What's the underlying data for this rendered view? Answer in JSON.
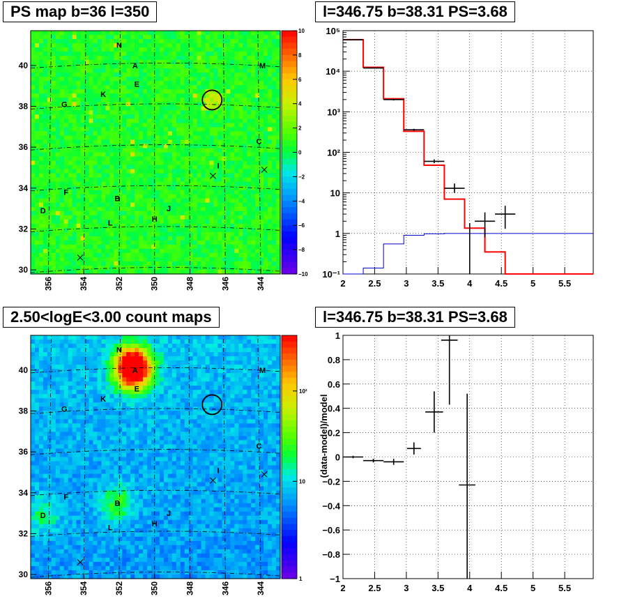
{
  "titles": {
    "ps_map": "PS map b=36 l=350",
    "spectrum": "l=346.75 b=38.31 PS=3.68",
    "count_map": "2.50<logE<3.00 count maps",
    "residual": "l=346.75 b=38.31 PS=3.68"
  },
  "chart_data": [
    {
      "type": "heatmap",
      "title": "PS map b=36 l=350",
      "x_ticks": [
        "356",
        "354",
        "352",
        "350",
        "348",
        "346",
        "344"
      ],
      "y_ticks": [
        "30",
        "32",
        "34",
        "36",
        "38",
        "40"
      ],
      "xlim": [
        357.0,
        342.9
      ],
      "ylim": [
        29.8,
        41.7
      ],
      "colorbar": {
        "scale": "linear",
        "range": [
          -10,
          10
        ],
        "ticks": [
          "10",
          "8",
          "6",
          "4",
          "2",
          "0",
          "−2",
          "−4",
          "−6",
          "−8",
          "−10"
        ]
      },
      "source_labels": [
        {
          "label": "N",
          "l": 352.0,
          "b": 41.0
        },
        {
          "label": "A",
          "l": 351.1,
          "b": 40.0
        },
        {
          "label": "M",
          "l": 343.9,
          "b": 40.0
        },
        {
          "label": "E",
          "l": 351.0,
          "b": 39.1
        },
        {
          "label": "K",
          "l": 352.9,
          "b": 38.6
        },
        {
          "label": "G",
          "l": 355.1,
          "b": 38.1
        },
        {
          "label": "C",
          "l": 344.1,
          "b": 36.3
        },
        {
          "label": "I",
          "l": 346.4,
          "b": 35.1
        },
        {
          "label": "F",
          "l": 355.0,
          "b": 33.8
        },
        {
          "label": "B",
          "l": 352.1,
          "b": 33.5
        },
        {
          "label": "D",
          "l": 356.3,
          "b": 32.9
        },
        {
          "label": "J",
          "l": 349.2,
          "b": 33.0
        },
        {
          "label": "H",
          "l": 350.0,
          "b": 32.5
        },
        {
          "label": "L",
          "l": 352.5,
          "b": 32.3
        }
      ],
      "circle_marker": {
        "l": 346.75,
        "b": 38.31
      },
      "cross_markers": [
        {
          "l": 346.7,
          "b": 34.6
        },
        {
          "l": 343.8,
          "b": 34.9
        },
        {
          "l": 354.2,
          "b": 30.6
        }
      ]
    },
    {
      "type": "line",
      "title": "l=346.75 b=38.31 PS=3.68",
      "y_scale": "log",
      "xlim": [
        2.0,
        5.95
      ],
      "ylim": [
        0.1,
        100000
      ],
      "x_ticks": [
        "2",
        "2.5",
        "3",
        "3.5",
        "4",
        "4.5",
        "5",
        "5.5"
      ],
      "y_ticks": [
        "10⁻¹",
        "1",
        "10",
        "10²",
        "10³",
        "10⁴",
        "10⁵"
      ],
      "grid": true,
      "series": [
        {
          "color": "#ff0000",
          "kind": "step",
          "edges": [
            2.0,
            2.32,
            2.64,
            2.96,
            3.28,
            3.6,
            3.92,
            4.24,
            4.56,
            4.88,
            5.2,
            5.52,
            5.95
          ],
          "values": [
            60000,
            12500,
            2100,
            330,
            48,
            7.0,
            1.35,
            0.35,
            0.1,
            0.1,
            0.1,
            0.1
          ]
        },
        {
          "color": "#0000cc",
          "kind": "step",
          "edges": [
            2.0,
            2.32,
            2.64,
            2.96,
            3.28,
            3.6,
            3.92,
            4.24,
            4.56,
            4.88,
            5.2,
            5.52,
            5.95
          ],
          "values": [
            0.1,
            0.14,
            0.55,
            0.9,
            0.98,
            1.0,
            1.0,
            1.0,
            1.0,
            1.0,
            1.0,
            1.0
          ]
        },
        {
          "color": "#000000",
          "kind": "errorbar",
          "points": [
            {
              "x": 2.16,
              "xerr": 0.16,
              "y": 60000,
              "ylo": 59500,
              "yhi": 60500
            },
            {
              "x": 2.48,
              "xerr": 0.16,
              "y": 12000,
              "ylo": 11800,
              "yhi": 12200
            },
            {
              "x": 2.8,
              "xerr": 0.16,
              "y": 2000,
              "ylo": 1900,
              "yhi": 2100
            },
            {
              "x": 3.12,
              "xerr": 0.16,
              "y": 360,
              "ylo": 340,
              "yhi": 380
            },
            {
              "x": 3.44,
              "xerr": 0.16,
              "y": 60,
              "ylo": 54,
              "yhi": 67
            },
            {
              "x": 3.76,
              "xerr": 0.16,
              "y": 13,
              "ylo": 10,
              "yhi": 17
            },
            {
              "x": 4.0,
              "xerr": 0.0,
              "y": 1.0,
              "ylo": 0.1,
              "yhi": 1.8
            },
            {
              "x": 4.24,
              "xerr": 0.16,
              "y": 2.0,
              "ylo": 0.8,
              "yhi": 3.3
            },
            {
              "x": 4.56,
              "xerr": 0.16,
              "y": 3.0,
              "ylo": 1.3,
              "yhi": 4.8
            }
          ]
        }
      ]
    },
    {
      "type": "heatmap",
      "title": "2.50<logE<3.00 count maps",
      "x_ticks": [
        "356",
        "354",
        "352",
        "350",
        "348",
        "346",
        "344"
      ],
      "y_ticks": [
        "30",
        "32",
        "34",
        "36",
        "38",
        "40"
      ],
      "xlim": [
        357.0,
        342.9
      ],
      "ylim": [
        29.8,
        41.7
      ],
      "colorbar": {
        "scale": "log",
        "ticks": [
          "10²",
          "10",
          "1"
        ]
      },
      "hotspots": [
        {
          "l": 351.2,
          "b": 40.1,
          "intensity": 1.0
        },
        {
          "l": 352.1,
          "b": 33.5,
          "intensity": 0.35
        },
        {
          "l": 356.3,
          "b": 32.9,
          "intensity": 0.25
        }
      ],
      "source_labels": [
        {
          "label": "N",
          "l": 352.0,
          "b": 41.0
        },
        {
          "label": "A",
          "l": 351.1,
          "b": 40.0
        },
        {
          "label": "M",
          "l": 343.9,
          "b": 40.0
        },
        {
          "label": "E",
          "l": 351.0,
          "b": 39.1
        },
        {
          "label": "K",
          "l": 352.9,
          "b": 38.6
        },
        {
          "label": "G",
          "l": 355.1,
          "b": 38.1
        },
        {
          "label": "C",
          "l": 344.1,
          "b": 36.3
        },
        {
          "label": "I",
          "l": 346.4,
          "b": 35.1
        },
        {
          "label": "F",
          "l": 355.0,
          "b": 33.8
        },
        {
          "label": "B",
          "l": 352.1,
          "b": 33.5
        },
        {
          "label": "D",
          "l": 356.3,
          "b": 32.9
        },
        {
          "label": "J",
          "l": 349.2,
          "b": 33.0
        },
        {
          "label": "H",
          "l": 350.0,
          "b": 32.5
        },
        {
          "label": "L",
          "l": 352.5,
          "b": 32.3
        }
      ],
      "circle_marker": {
        "l": 346.75,
        "b": 38.31
      },
      "cross_markers": [
        {
          "l": 346.7,
          "b": 34.6
        },
        {
          "l": 343.8,
          "b": 34.9
        },
        {
          "l": 354.2,
          "b": 30.6
        }
      ]
    },
    {
      "type": "scatter",
      "title": "l=346.75 b=38.31 PS=3.68",
      "ylabel": "(data-model)/model",
      "xlim": [
        2.0,
        5.95
      ],
      "ylim": [
        -1.0,
        1.0
      ],
      "x_ticks": [
        "2",
        "2.5",
        "3",
        "3.5",
        "4",
        "4.5",
        "5",
        "5.5"
      ],
      "y_ticks": [
        "−1",
        "−0.8",
        "−0.6",
        "−0.4",
        "−0.2",
        "0",
        "0.2",
        "0.4",
        "0.6",
        "0.8",
        "1"
      ],
      "grid": true,
      "points": [
        {
          "x": 2.16,
          "xerr": 0.16,
          "y": 0.0,
          "ylo": -0.01,
          "yhi": 0.01
        },
        {
          "x": 2.48,
          "xerr": 0.16,
          "y": -0.03,
          "ylo": -0.045,
          "yhi": -0.015
        },
        {
          "x": 2.8,
          "xerr": 0.16,
          "y": -0.04,
          "ylo": -0.065,
          "yhi": -0.015
        },
        {
          "x": 3.12,
          "xerr": 0.11,
          "y": 0.07,
          "ylo": 0.02,
          "yhi": 0.12
        },
        {
          "x": 3.44,
          "xerr": 0.14,
          "y": 0.37,
          "ylo": 0.2,
          "yhi": 0.54
        },
        {
          "x": 3.68,
          "xerr": 0.13,
          "y": 0.96,
          "ylo": 0.43,
          "yhi": 1.0
        },
        {
          "x": 3.96,
          "xerr": 0.13,
          "y": -0.23,
          "ylo": -1.0,
          "yhi": 0.52
        }
      ]
    }
  ]
}
